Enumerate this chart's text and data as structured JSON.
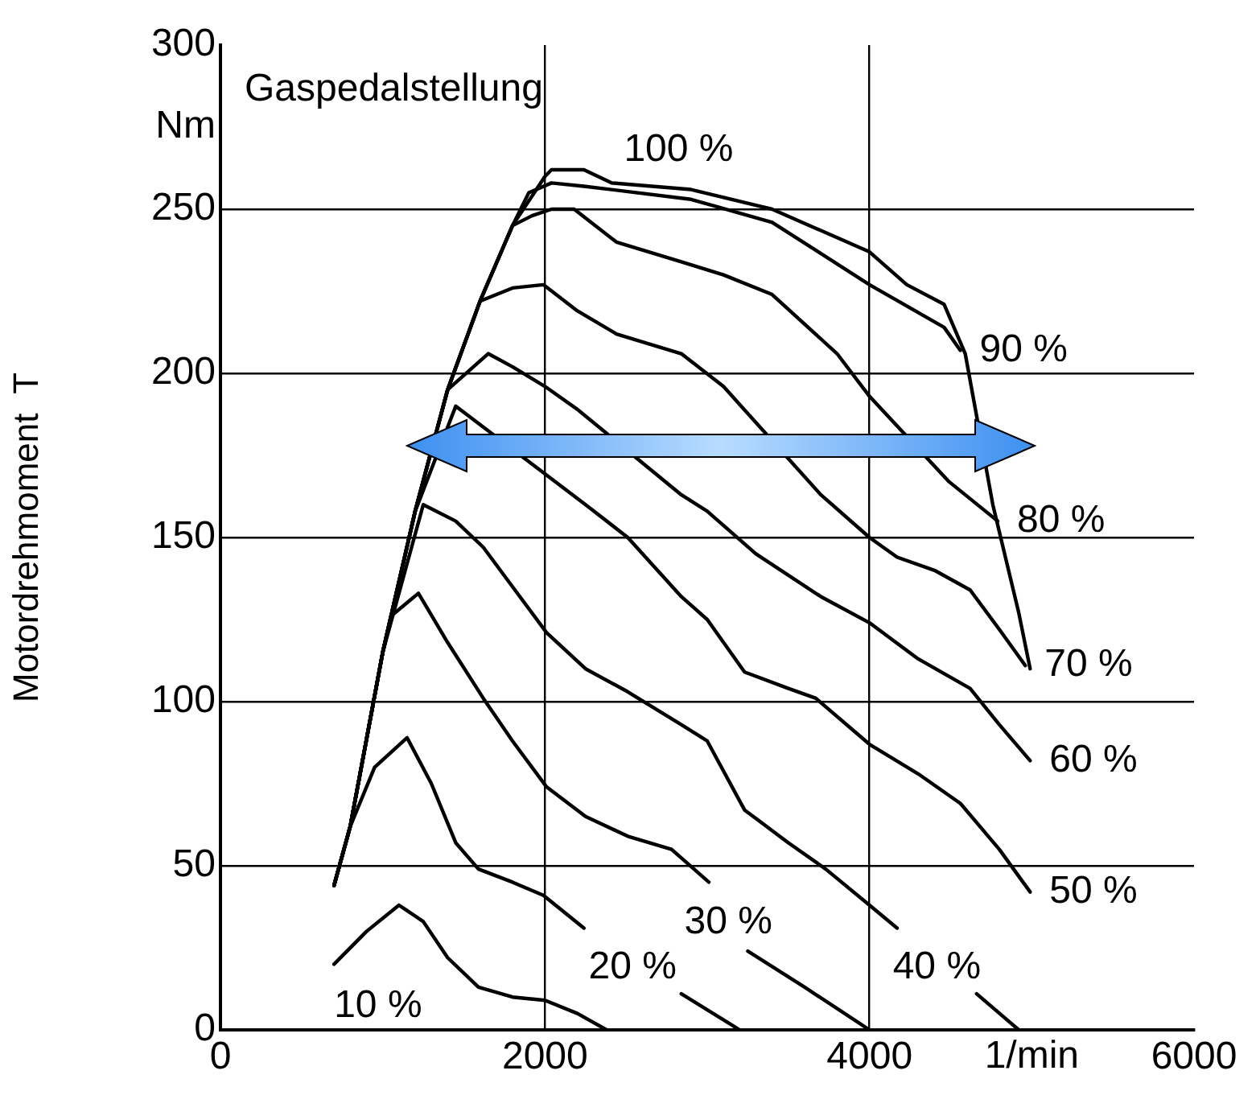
{
  "chart_data": {
    "type": "line",
    "legend_title": "Gaspedalstellung",
    "ylabel": "Motordrehmoment  T",
    "xlabel": "1/min",
    "xlim": [
      0,
      6000
    ],
    "xticks": [
      0,
      2000,
      4000,
      6000
    ],
    "ylim": [
      0,
      300
    ],
    "yticks": [
      0,
      50,
      100,
      150,
      200,
      250,
      {
        "value": 275,
        "label": "Nm"
      },
      300
    ],
    "grid": true,
    "legend": false,
    "marker": "none",
    "line_style": "solid",
    "series": [
      {
        "name": "100 %",
        "color": "#000000",
        "x": [
          700,
          800,
          1000,
          1200,
          1400,
          1600,
          1800,
          2000,
          2040,
          2240,
          2410,
          2900,
          3400,
          4000,
          4230,
          4460,
          4590,
          4760,
          4920,
          4990
        ],
        "values": [
          44,
          62,
          115,
          158,
          195,
          222,
          245,
          260,
          262,
          262,
          258,
          256,
          250,
          237,
          227,
          221,
          206,
          160,
          127,
          110
        ]
      },
      {
        "name": "90 %",
        "color": "#000000",
        "x": [
          700,
          800,
          1000,
          1200,
          1400,
          1600,
          1800,
          1900,
          2040,
          2240,
          2900,
          3400,
          4000,
          4460,
          4560
        ],
        "values": [
          44,
          62,
          115,
          158,
          195,
          222,
          245,
          255,
          258,
          257,
          253,
          246,
          227,
          214,
          207
        ]
      },
      {
        "name": "80 %",
        "color": "#000000",
        "x": [
          700,
          800,
          1000,
          1200,
          1400,
          1600,
          1800,
          1920,
          2040,
          2180,
          2440,
          2840,
          3100,
          3400,
          3800,
          4000,
          4490,
          4790
        ],
        "values": [
          44,
          62,
          115,
          158,
          195,
          222,
          245,
          248,
          250,
          250,
          240,
          234,
          230,
          224,
          206,
          193,
          167,
          155
        ]
      },
      {
        "name": "70 %",
        "color": "#000000",
        "x": [
          700,
          800,
          1000,
          1200,
          1400,
          1600,
          1800,
          1990,
          2200,
          2440,
          2840,
          3100,
          3700,
          4000,
          4170,
          4400,
          4620,
          4800,
          4960
        ],
        "values": [
          44,
          62,
          115,
          158,
          195,
          222,
          226,
          227,
          219,
          212,
          206,
          196,
          163,
          150,
          144,
          140,
          134,
          122,
          111
        ]
      },
      {
        "name": "60 %",
        "color": "#000000",
        "x": [
          700,
          800,
          1000,
          1200,
          1400,
          1650,
          1800,
          2000,
          2200,
          2840,
          3000,
          3300,
          3700,
          4000,
          4300,
          4620,
          4800,
          4990
        ],
        "values": [
          44,
          62,
          115,
          158,
          195,
          206,
          202,
          196,
          189,
          163,
          158,
          145,
          132,
          124,
          113,
          104,
          93,
          82
        ]
      },
      {
        "name": "50 %",
        "color": "#000000",
        "x": [
          700,
          800,
          1000,
          1200,
          1450,
          2250,
          2510,
          2840,
          3000,
          3230,
          3500,
          3670,
          4000,
          4300,
          4560,
          4800,
          4990
        ],
        "values": [
          44,
          62,
          115,
          158,
          190,
          160,
          150,
          132,
          125,
          109,
          104,
          101,
          87,
          78,
          69,
          55,
          42
        ]
      },
      {
        "name": "40 %",
        "color": "#000000",
        "x": [
          700,
          800,
          1000,
          1250,
          1450,
          1620,
          1800,
          2010,
          2250,
          2510,
          2840,
          3000,
          3230,
          3500,
          3730,
          4000,
          4170,
          4400,
          4660,
          4920
        ],
        "values": [
          44,
          62,
          115,
          160,
          155,
          147,
          135,
          121,
          110,
          103,
          93,
          88,
          67,
          57,
          49,
          38,
          31,
          null,
          11,
          0
        ]
      },
      {
        "name": "30 %",
        "color": "#000000",
        "x": [
          700,
          800,
          1000,
          1050,
          1220,
          1400,
          1620,
          1800,
          2010,
          2250,
          2510,
          2780,
          3010,
          3130,
          3250,
          3600,
          4000
        ],
        "values": [
          44,
          62,
          115,
          126,
          133,
          118,
          101,
          88,
          74,
          65,
          59,
          55,
          45,
          null,
          24,
          13,
          0
        ]
      },
      {
        "name": "20 %",
        "color": "#000000",
        "x": [
          700,
          800,
          950,
          1150,
          1300,
          1450,
          1590,
          1800,
          1990,
          2240,
          2500,
          2840,
          3200
        ],
        "values": [
          44,
          62,
          80,
          89,
          75,
          57,
          49,
          45,
          41,
          31,
          null,
          11,
          0
        ]
      },
      {
        "name": "10 %",
        "color": "#000000",
        "x": [
          700,
          900,
          1100,
          1250,
          1400,
          1590,
          1800,
          2000,
          2200,
          2380
        ],
        "values": [
          20,
          30,
          38,
          33,
          22,
          13,
          10,
          9,
          5,
          0
        ]
      }
    ]
  }
}
